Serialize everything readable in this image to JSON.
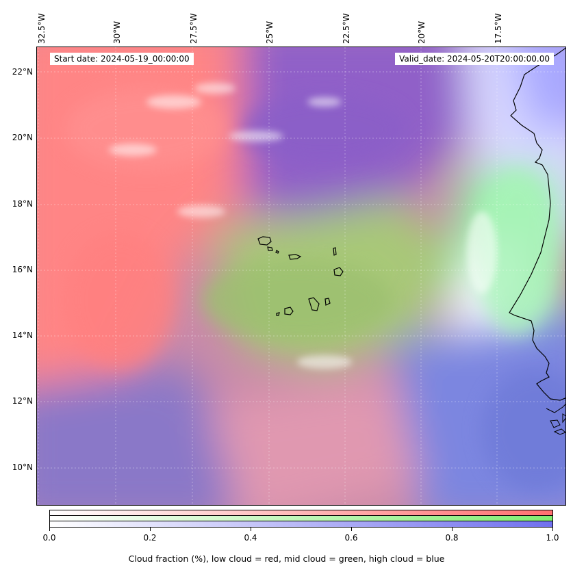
{
  "map": {
    "lon_labels": [
      "32.5°W",
      "30°W",
      "27.5°W",
      "25°W",
      "22.5°W",
      "20°W",
      "17.5°W"
    ],
    "lat_labels": [
      "22°N",
      "20°N",
      "18°N",
      "16°N",
      "14°N",
      "12°N",
      "10°N"
    ],
    "start_date": "Start date: 2024-05-19_00:00:00",
    "valid_date": "Valid_date: 2024-05-20T20:00:00.00",
    "colors": {
      "low_cloud": "#ff7070",
      "mid_cloud": "#80ee70",
      "high_cloud": "#7070ee",
      "clear": "#ffffff"
    }
  },
  "colorbar": {
    "tick_labels": [
      "0.0",
      "0.2",
      "0.4",
      "0.6",
      "0.8",
      "1.0"
    ],
    "title": "Cloud fraction (%), low cloud = red, mid cloud = green, high cloud = blue"
  }
}
